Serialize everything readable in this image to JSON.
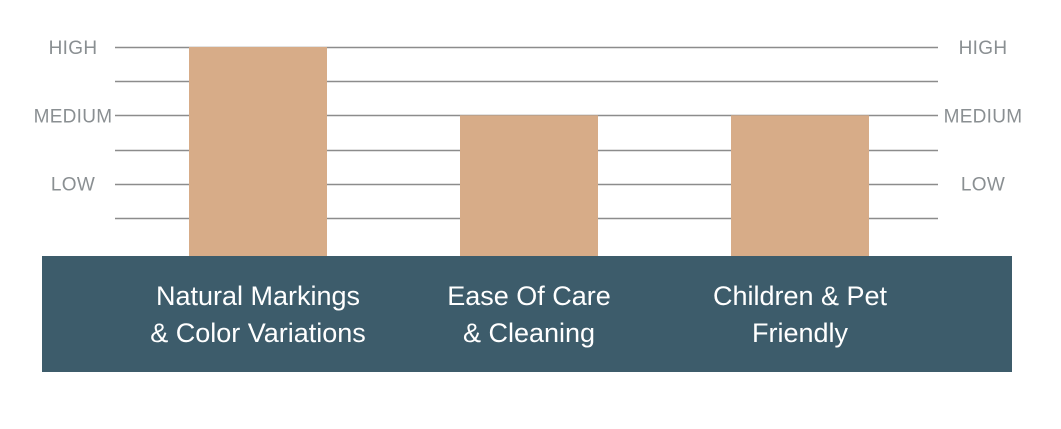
{
  "chart_data": {
    "type": "bar",
    "categories": [
      [
        "Natural Markings",
        "& Color Variations"
      ],
      [
        "Ease Of Care",
        "& Cleaning"
      ],
      [
        "Children & Pet",
        "Friendly"
      ]
    ],
    "values": [
      3,
      2,
      2
    ],
    "ylim": [
      0,
      3
    ],
    "yticks": [
      {
        "value": 1,
        "label": "LOW"
      },
      {
        "value": 2,
        "label": "MEDIUM"
      },
      {
        "value": 3,
        "label": "HIGH"
      }
    ],
    "minor_grid": [
      0.5,
      1.5,
      2.5
    ],
    "grid": true,
    "colors": {
      "bar": "#d7ac88",
      "band": "#3d5c6b",
      "grid": "#8c8c8c",
      "tick_text": "#8a8f92",
      "category_text": "#ffffff"
    }
  }
}
